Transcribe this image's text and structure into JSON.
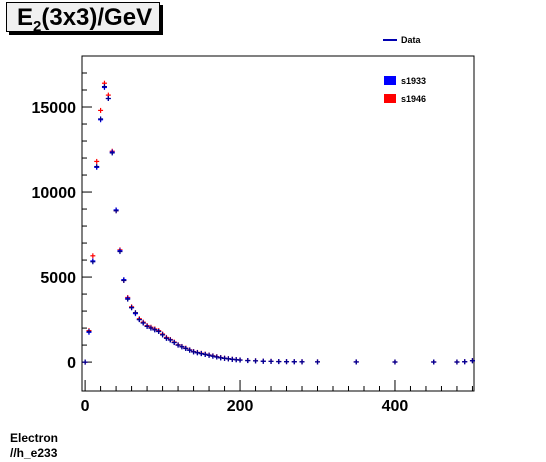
{
  "chart_data": {
    "type": "scatter",
    "title": {
      "main": "E",
      "sub": "2",
      "rest": "(3x3)/GeV"
    },
    "xlim": [
      -4,
      502
    ],
    "ylim": [
      -1700,
      18000
    ],
    "x_ticks": [
      0,
      200,
      400
    ],
    "y_ticks": [
      0,
      5000,
      10000,
      15000
    ],
    "legend_position": "top-right",
    "legend": [
      {
        "name": "Data",
        "style": "line",
        "color": "#0000b0"
      },
      {
        "name": "s1933",
        "style": "box",
        "color": "#0000ff"
      },
      {
        "name": "s1946",
        "style": "box",
        "color": "#ff0000"
      }
    ],
    "series": [
      {
        "name": "Data",
        "color": "#00008b",
        "x": [
          0,
          5,
          10,
          15,
          20,
          25,
          30,
          35,
          40,
          45,
          50,
          55,
          60,
          65,
          70,
          75,
          80,
          85,
          90,
          95,
          100,
          105,
          110,
          115,
          120,
          125,
          130,
          135,
          140,
          145,
          150,
          155,
          160,
          165,
          170,
          175,
          180,
          185,
          190,
          195,
          200,
          210,
          220,
          230,
          240,
          250,
          260,
          270,
          280,
          300,
          350,
          400,
          450,
          480,
          490,
          500
        ],
        "y": [
          0,
          1800,
          5900,
          11500,
          14300,
          16200,
          15500,
          12300,
          8900,
          6500,
          4800,
          3700,
          3200,
          2900,
          2500,
          2300,
          2100,
          2000,
          1900,
          1800,
          1600,
          1400,
          1300,
          1150,
          1000,
          900,
          800,
          700,
          600,
          550,
          500,
          450,
          400,
          350,
          300,
          250,
          220,
          190,
          160,
          140,
          120,
          90,
          70,
          50,
          40,
          30,
          25,
          20,
          15,
          10,
          8,
          5,
          5,
          5,
          20,
          80
        ]
      },
      {
        "name": "s1933",
        "color": "#0000ff",
        "x": [
          0,
          5,
          10,
          15,
          20,
          25,
          30,
          35,
          40,
          45,
          50,
          55,
          60,
          65,
          70,
          75,
          80,
          85,
          90,
          95,
          100,
          105,
          110,
          115,
          120,
          125,
          130,
          135,
          140,
          145,
          150,
          155,
          160,
          165,
          170,
          175,
          180,
          185,
          190,
          195,
          200,
          210,
          220,
          230,
          240,
          250,
          260,
          270,
          280,
          300,
          350,
          400,
          450,
          480,
          490,
          500
        ],
        "y": [
          0,
          1750,
          5950,
          11450,
          14250,
          16150,
          15500,
          12350,
          8950,
          6550,
          4850,
          3750,
          3200,
          2850,
          2500,
          2300,
          2100,
          2000,
          1900,
          1800,
          1600,
          1400,
          1300,
          1150,
          1000,
          900,
          800,
          700,
          600,
          550,
          500,
          450,
          400,
          350,
          300,
          250,
          220,
          190,
          160,
          140,
          120,
          90,
          70,
          50,
          40,
          30,
          25,
          20,
          15,
          10,
          8,
          5,
          5,
          5,
          20,
          80
        ]
      },
      {
        "name": "s1946",
        "color": "#ff0000",
        "x": [
          0,
          5,
          10,
          15,
          20,
          25,
          30,
          35,
          40,
          45,
          50,
          55,
          60,
          65,
          70,
          75,
          80,
          85,
          90,
          95,
          100,
          105,
          110,
          115,
          120,
          125,
          130,
          135,
          140,
          145,
          150,
          155,
          160,
          165,
          170,
          175,
          180,
          185,
          190,
          195,
          200,
          210,
          220,
          230,
          240,
          250,
          260,
          270,
          280,
          300,
          350,
          400,
          450,
          480,
          490,
          500
        ],
        "y": [
          0,
          1850,
          6250,
          11800,
          14800,
          16400,
          15700,
          12400,
          8900,
          6600,
          4800,
          3800,
          3250,
          2900,
          2550,
          2350,
          2150,
          2050,
          1950,
          1850,
          1650,
          1450,
          1330,
          1180,
          1020,
          920,
          820,
          720,
          620,
          570,
          520,
          470,
          420,
          370,
          320,
          270,
          230,
          200,
          170,
          150,
          125,
          95,
          75,
          55,
          45,
          35,
          28,
          22,
          18,
          12,
          9,
          6,
          6,
          6,
          22,
          85
        ]
      }
    ]
  },
  "footer": {
    "line1": "Electron",
    "line2": "//h_e233"
  }
}
